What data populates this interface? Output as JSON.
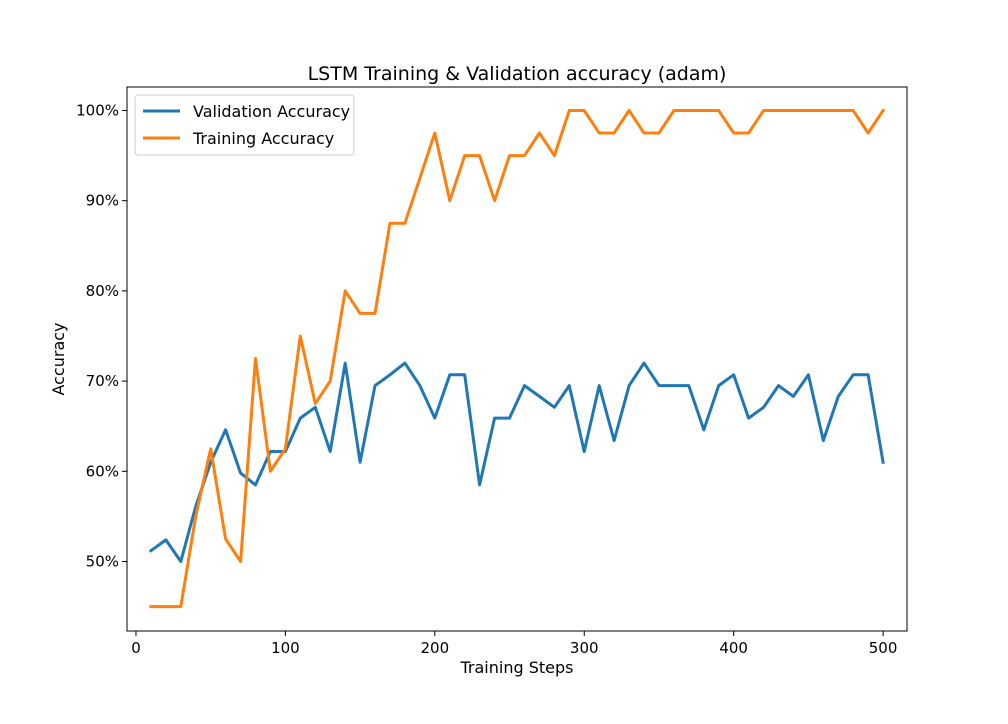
{
  "chart_data": {
    "type": "line",
    "title": "LSTM Training & Validation accuracy (adam)",
    "xlabel": "Training Steps",
    "ylabel": "Accuracy",
    "xlim": [
      -6,
      516
    ],
    "ylim": [
      42.3,
      102.6
    ],
    "x_ticks": [
      0,
      100,
      200,
      300,
      400,
      500
    ],
    "x_tick_labels": [
      "0",
      "100",
      "200",
      "300",
      "400",
      "500"
    ],
    "y_ticks": [
      50,
      60,
      70,
      80,
      90,
      100
    ],
    "y_tick_labels": [
      "50%",
      "60%",
      "70%",
      "80%",
      "90%",
      "100%"
    ],
    "grid": false,
    "legend_position": "top-left",
    "x": [
      10,
      20,
      30,
      40,
      50,
      60,
      70,
      80,
      90,
      100,
      110,
      120,
      130,
      140,
      150,
      160,
      170,
      180,
      190,
      200,
      210,
      220,
      230,
      240,
      250,
      260,
      270,
      280,
      290,
      300,
      310,
      320,
      330,
      340,
      350,
      360,
      370,
      380,
      390,
      400,
      410,
      420,
      430,
      440,
      450,
      460,
      470,
      480,
      490,
      500
    ],
    "series": [
      {
        "name": "Validation Accuracy",
        "color": "#1f77b4",
        "values": [
          51.2,
          52.4,
          50.0,
          56.1,
          61.0,
          64.6,
          59.8,
          58.5,
          62.2,
          62.2,
          65.9,
          67.1,
          62.2,
          72.0,
          61.0,
          69.5,
          70.7,
          72.0,
          69.5,
          65.9,
          70.7,
          70.7,
          58.5,
          65.9,
          65.9,
          69.5,
          68.3,
          67.1,
          69.5,
          62.2,
          69.5,
          63.4,
          69.5,
          72.0,
          69.5,
          69.5,
          69.5,
          64.6,
          69.5,
          70.7,
          65.9,
          67.1,
          69.5,
          68.3,
          70.7,
          63.4,
          68.3,
          70.7,
          70.7,
          61.0
        ]
      },
      {
        "name": "Training Accuracy",
        "color": "#ff7f0e",
        "values": [
          45.0,
          45.0,
          45.0,
          55.0,
          62.5,
          52.5,
          50.0,
          72.5,
          60.0,
          62.5,
          75.0,
          67.5,
          70.0,
          80.0,
          77.5,
          77.5,
          87.5,
          87.5,
          92.5,
          97.5,
          90.0,
          95.0,
          95.0,
          90.0,
          95.0,
          95.0,
          97.5,
          95.0,
          100.0,
          100.0,
          97.5,
          97.5,
          100.0,
          97.5,
          97.5,
          100.0,
          100.0,
          100.0,
          100.0,
          97.5,
          97.5,
          100.0,
          100.0,
          100.0,
          100.0,
          100.0,
          100.0,
          100.0,
          97.5,
          100.0
        ]
      }
    ]
  }
}
